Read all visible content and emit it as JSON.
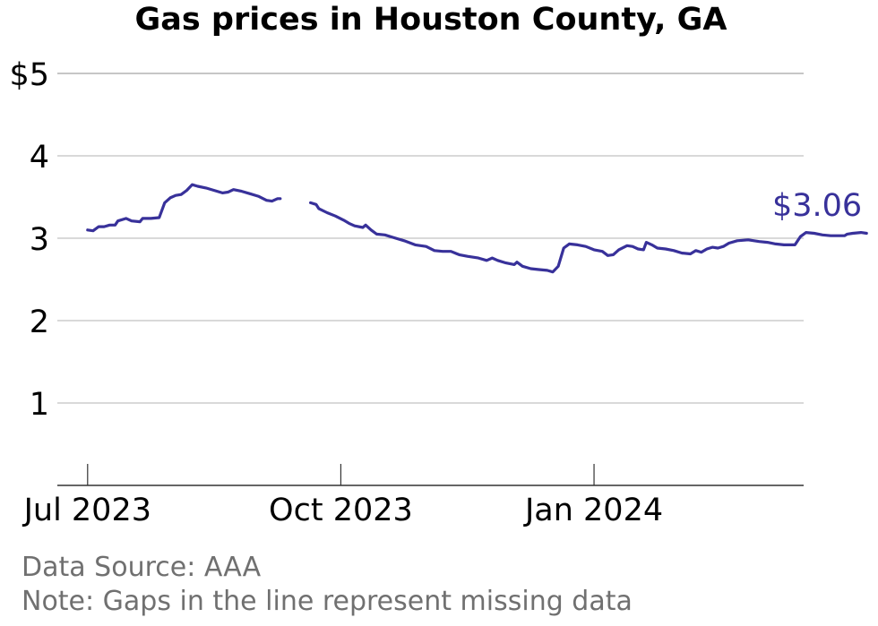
{
  "chart_data": {
    "type": "line",
    "title": "Gas prices in Houston County, GA",
    "xlabel": "",
    "ylabel": "",
    "y_ticks": [
      "1",
      "2",
      "3",
      "4",
      "$5"
    ],
    "ylim": [
      0,
      5
    ],
    "x_ticks": [
      {
        "label": "Jul 2023",
        "date": "2023-07-01"
      },
      {
        "label": "Oct 2023",
        "date": "2023-10-01"
      },
      {
        "label": "Jan 2024",
        "date": "2024-01-01"
      }
    ],
    "xlim": [
      "2023-06-20",
      "2024-04-09"
    ],
    "grid": true,
    "last_value_label": "$3.06",
    "line_color": "#38319a",
    "series": [
      {
        "segments": [
          [
            [
              "2023-07-01",
              3.1
            ],
            [
              "2023-07-03",
              3.09
            ],
            [
              "2023-07-05",
              3.14
            ],
            [
              "2023-07-07",
              3.14
            ],
            [
              "2023-07-09",
              3.16
            ],
            [
              "2023-07-11",
              3.16
            ],
            [
              "2023-07-12",
              3.21
            ],
            [
              "2023-07-15",
              3.24
            ],
            [
              "2023-07-17",
              3.21
            ],
            [
              "2023-07-20",
              3.2
            ],
            [
              "2023-07-21",
              3.24
            ],
            [
              "2023-07-24",
              3.24
            ],
            [
              "2023-07-27",
              3.25
            ],
            [
              "2023-07-29",
              3.43
            ],
            [
              "2023-07-31",
              3.49
            ],
            [
              "2023-08-02",
              3.52
            ],
            [
              "2023-08-04",
              3.53
            ],
            [
              "2023-08-06",
              3.58
            ],
            [
              "2023-08-08",
              3.65
            ],
            [
              "2023-08-10",
              3.63
            ],
            [
              "2023-08-13",
              3.61
            ],
            [
              "2023-08-16",
              3.58
            ],
            [
              "2023-08-19",
              3.55
            ],
            [
              "2023-08-21",
              3.56
            ],
            [
              "2023-08-23",
              3.59
            ],
            [
              "2023-08-26",
              3.57
            ],
            [
              "2023-08-29",
              3.54
            ],
            [
              "2023-09-01",
              3.51
            ],
            [
              "2023-09-04",
              3.46
            ],
            [
              "2023-09-06",
              3.45
            ],
            [
              "2023-09-08",
              3.48
            ],
            [
              "2023-09-09",
              3.48
            ]
          ],
          [
            [
              "2023-09-20",
              3.43
            ],
            [
              "2023-09-22",
              3.41
            ],
            [
              "2023-09-23",
              3.36
            ],
            [
              "2023-09-26",
              3.31
            ],
            [
              "2023-09-29",
              3.27
            ],
            [
              "2023-10-02",
              3.22
            ],
            [
              "2023-10-04",
              3.18
            ],
            [
              "2023-10-06",
              3.15
            ],
            [
              "2023-10-09",
              3.13
            ],
            [
              "2023-10-10",
              3.16
            ],
            [
              "2023-10-12",
              3.1
            ],
            [
              "2023-10-14",
              3.05
            ],
            [
              "2023-10-17",
              3.04
            ],
            [
              "2023-10-20",
              3.01
            ],
            [
              "2023-10-24",
              2.97
            ],
            [
              "2023-10-28",
              2.92
            ],
            [
              "2023-11-01",
              2.9
            ],
            [
              "2023-11-04",
              2.85
            ],
            [
              "2023-11-07",
              2.84
            ],
            [
              "2023-11-10",
              2.84
            ],
            [
              "2023-11-13",
              2.8
            ],
            [
              "2023-11-16",
              2.78
            ],
            [
              "2023-11-20",
              2.76
            ],
            [
              "2023-11-23",
              2.73
            ],
            [
              "2023-11-25",
              2.76
            ],
            [
              "2023-11-27",
              2.73
            ],
            [
              "2023-11-30",
              2.7
            ],
            [
              "2023-12-03",
              2.68
            ],
            [
              "2023-12-04",
              2.71
            ],
            [
              "2023-12-06",
              2.66
            ],
            [
              "2023-12-09",
              2.63
            ],
            [
              "2023-12-12",
              2.62
            ],
            [
              "2023-12-15",
              2.61
            ],
            [
              "2023-12-17",
              2.59
            ],
            [
              "2023-12-19",
              2.66
            ],
            [
              "2023-12-21",
              2.88
            ],
            [
              "2023-12-23",
              2.93
            ],
            [
              "2023-12-26",
              2.92
            ],
            [
              "2023-12-29",
              2.9
            ],
            [
              "2024-01-01",
              2.86
            ],
            [
              "2024-01-04",
              2.84
            ],
            [
              "2024-01-06",
              2.79
            ],
            [
              "2024-01-08",
              2.8
            ],
            [
              "2024-01-10",
              2.86
            ],
            [
              "2024-01-13",
              2.91
            ],
            [
              "2024-01-15",
              2.9
            ],
            [
              "2024-01-17",
              2.87
            ],
            [
              "2024-01-19",
              2.86
            ],
            [
              "2024-01-20",
              2.95
            ],
            [
              "2024-01-22",
              2.92
            ],
            [
              "2024-01-24",
              2.88
            ],
            [
              "2024-01-27",
              2.87
            ],
            [
              "2024-01-30",
              2.85
            ],
            [
              "2024-02-02",
              2.82
            ],
            [
              "2024-02-05",
              2.81
            ],
            [
              "2024-02-07",
              2.85
            ],
            [
              "2024-02-09",
              2.83
            ],
            [
              "2024-02-11",
              2.87
            ],
            [
              "2024-02-13",
              2.89
            ],
            [
              "2024-02-15",
              2.88
            ],
            [
              "2024-02-17",
              2.9
            ],
            [
              "2024-02-19",
              2.94
            ],
            [
              "2024-02-22",
              2.97
            ],
            [
              "2024-02-26",
              2.98
            ],
            [
              "2024-03-01",
              2.96
            ],
            [
              "2024-03-04",
              2.95
            ],
            [
              "2024-03-07",
              2.93
            ],
            [
              "2024-03-10",
              2.92
            ],
            [
              "2024-03-14",
              2.92
            ],
            [
              "2024-03-16",
              3.02
            ],
            [
              "2024-03-18",
              3.07
            ],
            [
              "2024-03-21",
              3.06
            ],
            [
              "2024-03-24",
              3.04
            ],
            [
              "2024-03-27",
              3.03
            ],
            [
              "2024-03-30",
              3.03
            ],
            [
              "2024-04-01",
              3.03
            ],
            [
              "2024-04-02",
              3.05
            ],
            [
              "2024-04-04",
              3.06
            ],
            [
              "2024-04-07",
              3.07
            ],
            [
              "2024-04-09",
              3.06
            ]
          ]
        ]
      }
    ]
  },
  "footer": {
    "source": "Data Source: AAA",
    "note": "Note: Gaps in the line represent missing data"
  }
}
